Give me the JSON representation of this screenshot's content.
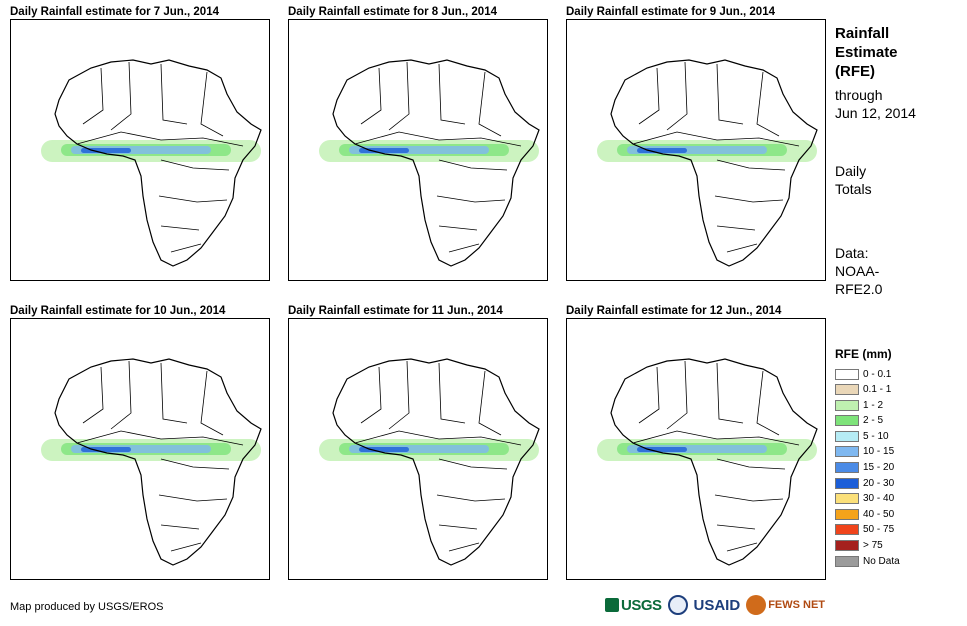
{
  "panels": [
    {
      "title": "Daily Rainfall estimate for 7 Jun., 2014"
    },
    {
      "title": "Daily Rainfall estimate for 8 Jun., 2014"
    },
    {
      "title": "Daily Rainfall estimate for 9 Jun., 2014"
    },
    {
      "title": "Daily Rainfall estimate for 10 Jun., 2014"
    },
    {
      "title": "Daily Rainfall estimate for 11 Jun., 2014"
    },
    {
      "title": "Daily Rainfall estimate for 12 Jun., 2014"
    }
  ],
  "sidebar": {
    "title_line1": "Rainfall",
    "title_line2": "Estimate",
    "title_line3": "(RFE)",
    "through_label": "through",
    "through_date": "Jun 12, 2014",
    "daily_line1": "Daily",
    "daily_line2": "Totals",
    "data_line1": "Data:",
    "data_line2": "NOAA-",
    "data_line3": "RFE2.0"
  },
  "legend": {
    "title": "RFE (mm)",
    "items": [
      {
        "label": "0 - 0.1",
        "color": "#ffffff"
      },
      {
        "label": "0.1 - 1",
        "color": "#ead7b8"
      },
      {
        "label": "1 - 2",
        "color": "#bff0b0"
      },
      {
        "label": "2 - 5",
        "color": "#7ee37a"
      },
      {
        "label": "5 - 10",
        "color": "#b6ecf5"
      },
      {
        "label": "10 - 15",
        "color": "#7fb8f0"
      },
      {
        "label": "15 - 20",
        "color": "#4b8be6"
      },
      {
        "label": "20 - 30",
        "color": "#1c5ed8"
      },
      {
        "label": "30 - 40",
        "color": "#fbe07a"
      },
      {
        "label": "40 - 50",
        "color": "#f5a31a"
      },
      {
        "label": "50 - 75",
        "color": "#f0441b"
      },
      {
        "label": "> 75",
        "color": "#a5211e"
      },
      {
        "label": "No Data",
        "color": "#9b9b9b"
      }
    ]
  },
  "footer": {
    "credit": "Map produced by USGS/EROS",
    "logo_usgs": "USGS",
    "logo_usaid": "USAID",
    "logo_fews": "FEWS NET"
  }
}
